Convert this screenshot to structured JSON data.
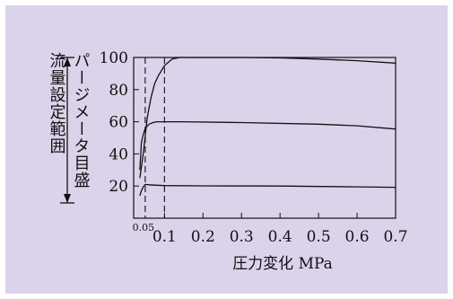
{
  "chart_data": {
    "type": "line",
    "title": "",
    "xlabel": "圧力変化 MPa",
    "ylabel_lines": [
      "流量設定範囲",
      "パージメータ目盛"
    ],
    "xlim": [
      0.02,
      0.7
    ],
    "ylim": [
      0,
      100
    ],
    "x_ticks": [
      "0.1",
      "0.2",
      "0.3",
      "0.4",
      "0.5",
      "0.6",
      "0.7"
    ],
    "y_ticks": [
      "20",
      "40",
      "60",
      "80",
      "100"
    ],
    "x_minor_label": "0.05",
    "reference_lines_x": [
      0.05,
      0.1
    ],
    "series": [
      {
        "x": [
          0.036,
          0.045,
          0.055,
          0.065,
          0.075,
          0.085,
          0.1,
          0.12,
          0.14,
          0.2,
          0.3,
          0.4,
          0.5,
          0.6,
          0.7
        ],
        "y": [
          25,
          40,
          62,
          75,
          84,
          89,
          95,
          99,
          100,
          100,
          100,
          99.7,
          99,
          98,
          96.5
        ]
      },
      {
        "x": [
          0.036,
          0.04,
          0.045,
          0.05,
          0.06,
          0.07,
          0.08,
          0.1,
          0.15,
          0.3,
          0.5,
          0.6,
          0.7
        ],
        "y": [
          30,
          47,
          52,
          56,
          58.5,
          59.5,
          60,
          60,
          60,
          59.5,
          58.5,
          57.5,
          55.5
        ]
      },
      {
        "x": [
          0.036,
          0.04,
          0.045,
          0.05,
          0.06,
          0.08,
          0.1,
          0.2,
          0.4,
          0.6,
          0.7
        ],
        "y": [
          14,
          17,
          19.5,
          21,
          20.8,
          20.5,
          20.3,
          20.1,
          20,
          19.5,
          19.2
        ]
      }
    ]
  }
}
